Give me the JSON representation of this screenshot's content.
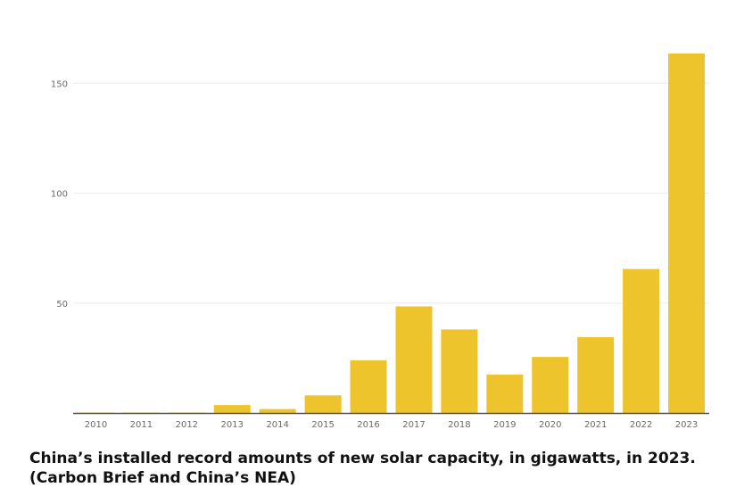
{
  "chart_data": {
    "type": "bar",
    "title": "",
    "xlabel": "",
    "ylabel": "",
    "categories": [
      "2010",
      "2011",
      "2012",
      "2013",
      "2014",
      "2015",
      "2016",
      "2017",
      "2018",
      "2019",
      "2020",
      "2021",
      "2022",
      "2023"
    ],
    "values": [
      0.2,
      0.2,
      0.2,
      3.6,
      1.8,
      8.0,
      24.0,
      48.5,
      38.0,
      17.5,
      25.5,
      34.5,
      65.5,
      163.5
    ],
    "y_ticks": [
      "50",
      "100",
      "150"
    ],
    "ylim": [
      0,
      170
    ],
    "grid": true,
    "legend": "none",
    "colors": {
      "bar": "#eec42c",
      "grid": "#ececec",
      "axis": "#555555",
      "tick_text": "#6b6b6b"
    }
  },
  "caption": "China’s installed record amounts of new solar capacity, in gigawatts, in 2023. (Carbon Brief and China’s NEA)"
}
